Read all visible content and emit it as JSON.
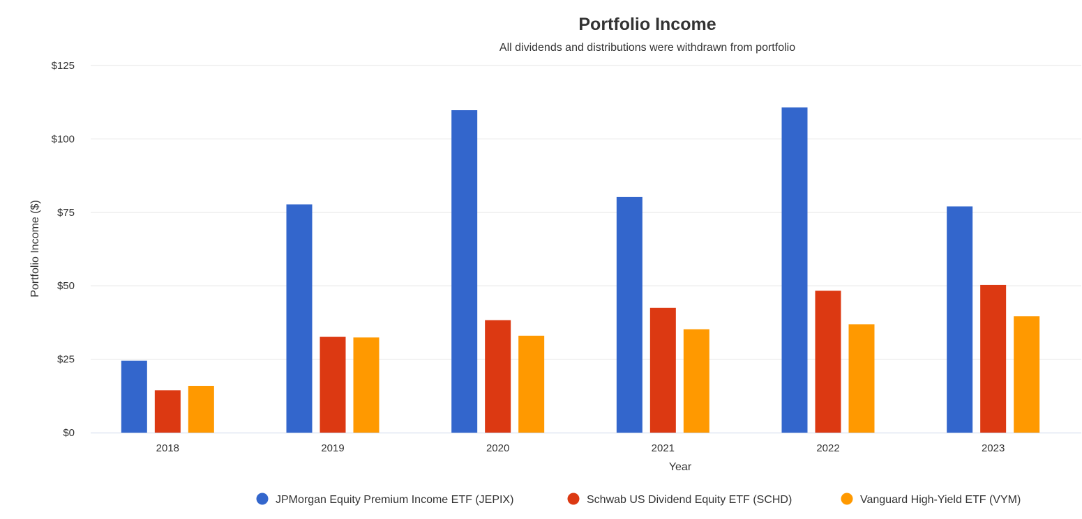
{
  "chart_data": {
    "type": "bar",
    "title": "Portfolio Income",
    "subtitle": "All dividends and distributions were withdrawn from portfolio",
    "xlabel": "Year",
    "ylabel": "Portfolio Income ($)",
    "categories": [
      "2018",
      "2019",
      "2020",
      "2021",
      "2022",
      "2023"
    ],
    "ylim": [
      0,
      125
    ],
    "yticks": [
      0,
      25,
      50,
      75,
      100,
      125
    ],
    "ytick_labels": [
      "$0",
      "$25",
      "$50",
      "$75",
      "$100",
      "$125"
    ],
    "grid": true,
    "legend_position": "bottom-center",
    "series": [
      {
        "name": "JPMorgan Equity Premium Income ETF (JEPIX)",
        "color": "#3366cc",
        "values": [
          24.5,
          77.7,
          109.8,
          80.2,
          110.7,
          77.0
        ]
      },
      {
        "name": "Schwab US Dividend Equity ETF (SCHD)",
        "color": "#dc3912",
        "values": [
          14.4,
          32.6,
          38.3,
          42.5,
          48.3,
          50.3
        ]
      },
      {
        "name": "Vanguard High-Yield ETF (VYM)",
        "color": "#ff9900",
        "values": [
          15.9,
          32.4,
          33.0,
          35.2,
          36.9,
          39.6
        ]
      }
    ]
  }
}
